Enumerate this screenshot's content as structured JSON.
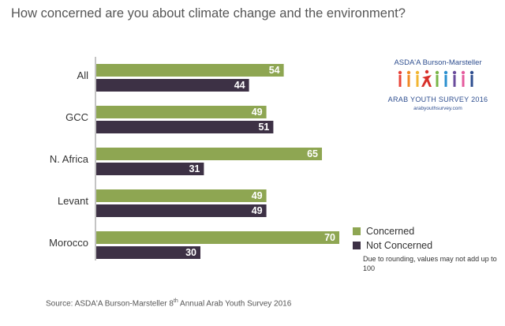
{
  "title": "How concerned are you about climate change and the environment?",
  "logo": {
    "brand_line": "ASDA'A Burson-Marsteller",
    "survey_line": "ARAB YOUTH SURVEY 2016",
    "url": "arabyouthsurvey.com"
  },
  "legend": {
    "concerned": "Concerned",
    "not_concerned": "Not Concerned"
  },
  "note": "Due to rounding, values may not add up to 100",
  "source": {
    "prefix": "Source: ASDA'A Burson-Marsteller 8",
    "ordinal": "th",
    "suffix": " Annual Arab Youth Survey 2016"
  },
  "colors": {
    "concerned": "#8ea652",
    "not_concerned": "#3d3145",
    "axis": "#888888"
  },
  "chart_data": {
    "type": "bar",
    "orientation": "horizontal",
    "categories": [
      "All",
      "GCC",
      "N. Africa",
      "Levant",
      "Morocco"
    ],
    "series": [
      {
        "name": "Concerned",
        "values": [
          54,
          49,
          65,
          49,
          70
        ]
      },
      {
        "name": "Not Concerned",
        "values": [
          44,
          51,
          31,
          49,
          30
        ]
      }
    ],
    "xlim": [
      0,
      100
    ],
    "legend_position": "right"
  }
}
